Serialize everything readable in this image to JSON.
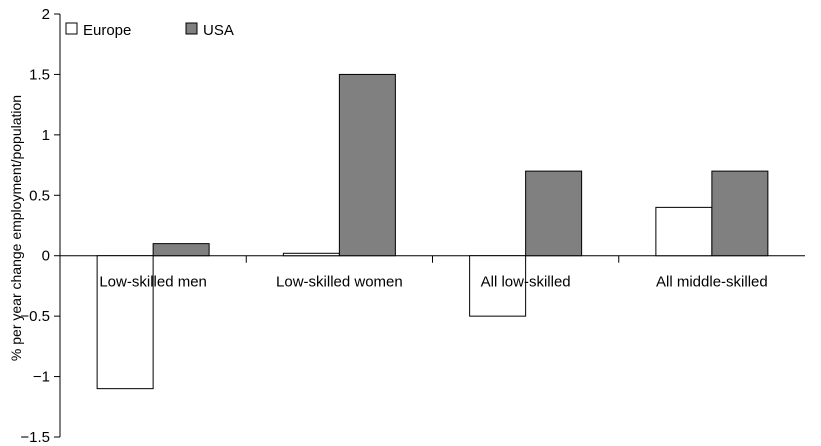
{
  "chart_data": {
    "type": "bar",
    "categories": [
      "Low-skilled men",
      "Low-skilled women",
      "All low-skilled",
      "All middle-skilled"
    ],
    "series": [
      {
        "name": "Europe",
        "values": [
          -1.1,
          0.02,
          -0.5,
          0.4
        ]
      },
      {
        "name": "USA",
        "values": [
          0.1,
          1.5,
          0.7,
          0.7
        ]
      }
    ],
    "title": "",
    "xlabel": "",
    "ylabel": "% per year change employment/population",
    "ylim": [
      -1.5,
      2
    ],
    "yticks": [
      2,
      1.5,
      1,
      0.5,
      0,
      -0.5,
      -1,
      -1.5
    ],
    "ytick_labels": [
      "2",
      "1.5",
      "1",
      "0.5",
      "0",
      "−0.5",
      "−1",
      "−1.5"
    ],
    "grid": false,
    "legend": "top-left",
    "colors": {
      "Europe": "#ffffff",
      "USA": "#808080",
      "edge": "#000000"
    }
  }
}
